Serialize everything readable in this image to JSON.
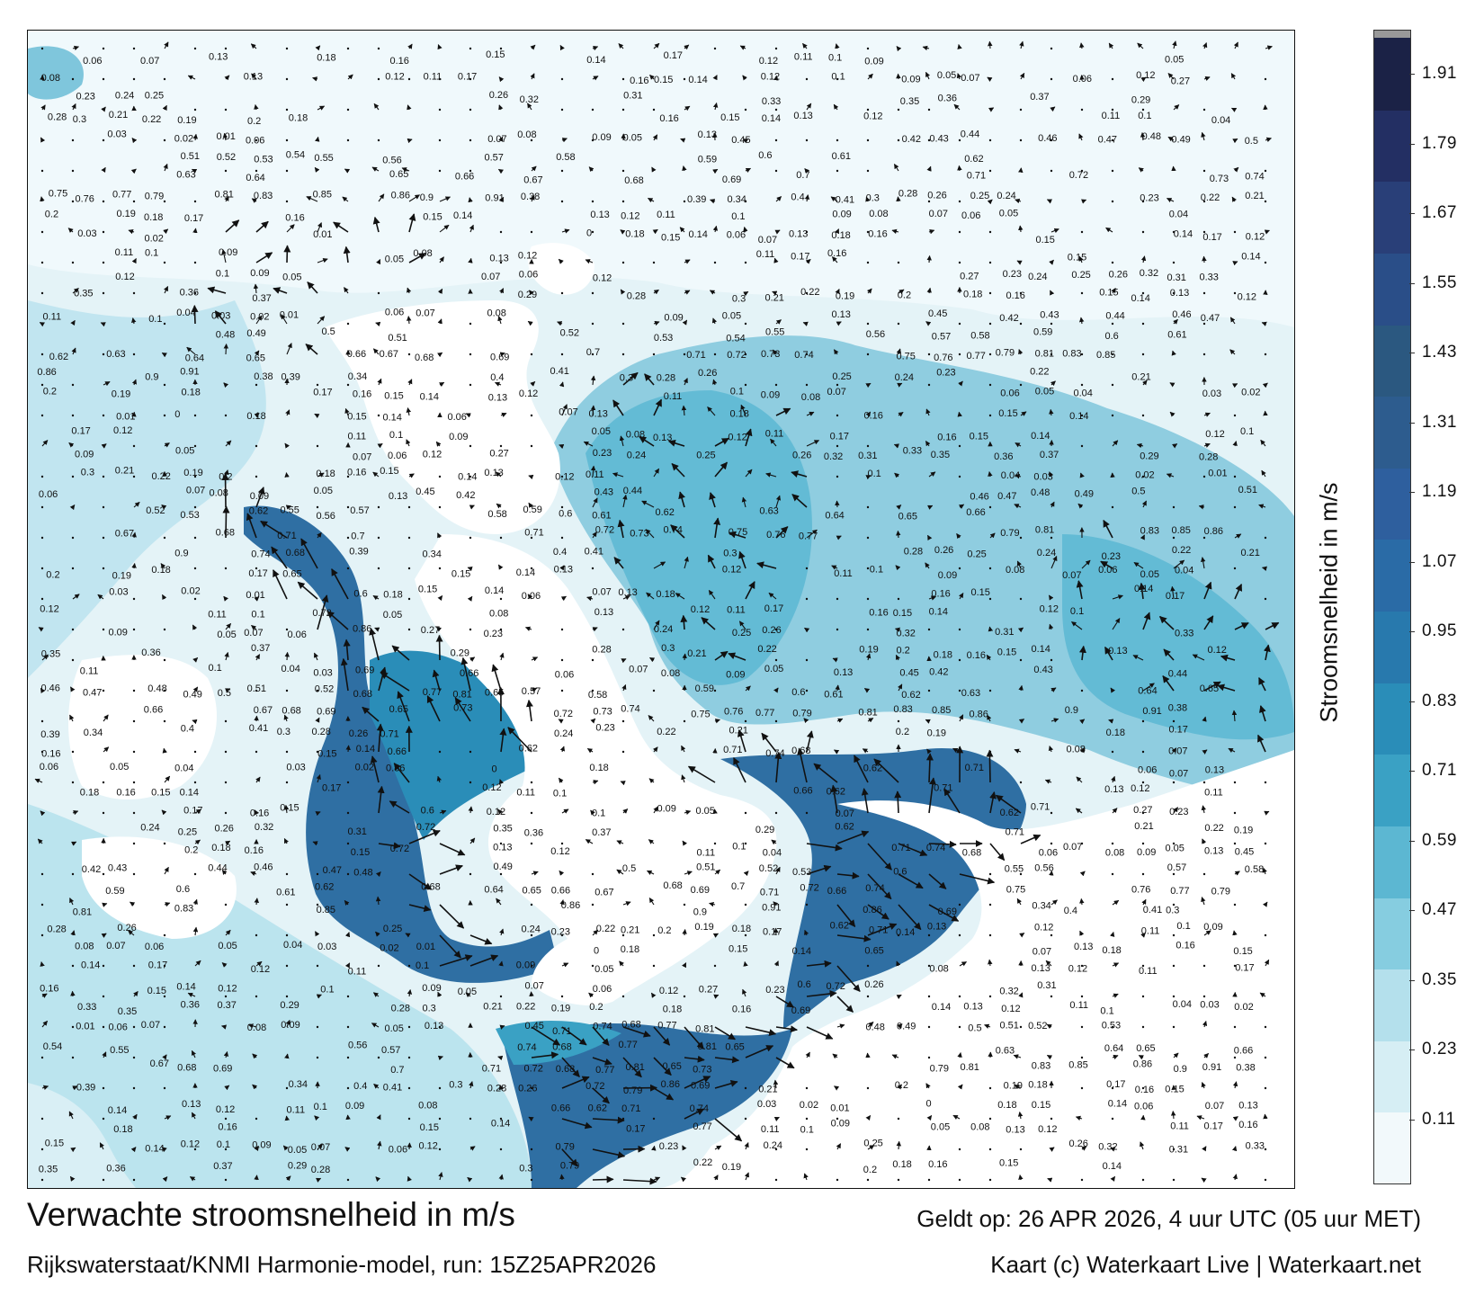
{
  "title": "Verwachte stroomsnelheid in m/s",
  "subtitle": "Rijkswaterstaat/KNMI Harmonie-model, run: 15Z25APR2026",
  "valid_time": "Geldt op: 26 APR 2026, 4 uur UTC (05 uur MET)",
  "credit": "Kaart (c) Waterkaart Live | Waterkaart.net",
  "legend": {
    "title": "Stroomsnelheid in m/s",
    "ticks": [
      "0.11",
      "0.23",
      "0.35",
      "0.47",
      "0.59",
      "0.71",
      "0.83",
      "0.95",
      "1.07",
      "1.19",
      "1.31",
      "1.43",
      "1.55",
      "1.67",
      "1.79",
      "1.91"
    ],
    "colors": [
      "#f2f9fb",
      "#d6eef4",
      "#b4e0ec",
      "#86cde0",
      "#5cb7d2",
      "#3aa1c4",
      "#2a8db8",
      "#2879ad",
      "#2a6ba6",
      "#2e5f9e",
      "#2d5c8e",
      "#2b5880",
      "#2a4e88",
      "#293f78",
      "#232f63",
      "#1b2246"
    ]
  },
  "colors": {
    "land": "#ffffff",
    "water_low": "#e4f3f7",
    "water_mid": "#8fcde0",
    "water_high": "#2f6fa3",
    "arrow": "#111111"
  },
  "map_labels": [
    "0.06",
    "0.07",
    "0.13",
    "0.18",
    "0.16",
    "0.15",
    "0.14",
    "0.17",
    "0.12",
    "0.11",
    "0.1",
    "0.09",
    "0.05",
    "0.08",
    "0.13",
    "0.12",
    "0.11",
    "0.17",
    "0.16",
    "0.15",
    "0.14",
    "0.12",
    "0.1",
    "0.09",
    "0.05",
    "0.07",
    "0.06",
    "0.12",
    "0.27",
    "0.23",
    "0.24",
    "0.25",
    "0.26",
    "0.32",
    "0.31",
    "0.33",
    "0.35",
    "0.36",
    "0.37",
    "0.29",
    "0.28",
    "0.3",
    "0.21",
    "0.22",
    "0.19",
    "0.2",
    "0.18",
    "0.16",
    "0.15",
    "0.14",
    "0.13",
    "0.12",
    "0.11",
    "0.1",
    "0.04",
    "0.03",
    "0.02",
    "0.01",
    "0.06",
    "0.07",
    "0.08",
    "0.09",
    "0.05",
    "0.13",
    "0.45",
    "0.42",
    "0.43",
    "0.44",
    "0.46",
    "0.47",
    "0.48",
    "0.49",
    "0.5",
    "0.51",
    "0.52",
    "0.53",
    "0.54",
    "0.55",
    "0.56",
    "0.57",
    "0.58",
    "0.59",
    "0.6",
    "0.61",
    "0.62",
    "0.63",
    "0.64",
    "0.65",
    "0.66",
    "0.67",
    "0.68",
    "0.69",
    "0.7",
    "0.71",
    "0.72",
    "0.73",
    "0.74",
    "0.75",
    "0.76",
    "0.77",
    "0.79",
    "0.81",
    "0.83",
    "0.85",
    "0.86",
    "0.9",
    "0.91",
    "0.38",
    "0.39",
    "0.34",
    "0.4",
    "0.41",
    "0.3",
    "0.28",
    "0.26",
    "0.25",
    "0.24",
    "0.23",
    "0.22",
    "0.21",
    "0.2",
    "0.19",
    "0.18",
    "0.17",
    "0.16",
    "0.15",
    "0.14",
    "0.13",
    "0.12",
    "0.11",
    "0.1",
    "0.09",
    "0.08",
    "0.07",
    "0.06",
    "0.05",
    "0.04",
    "0.03",
    "0.02",
    "0.01",
    "0",
    "0.18",
    "0.15",
    "0.14"
  ]
}
